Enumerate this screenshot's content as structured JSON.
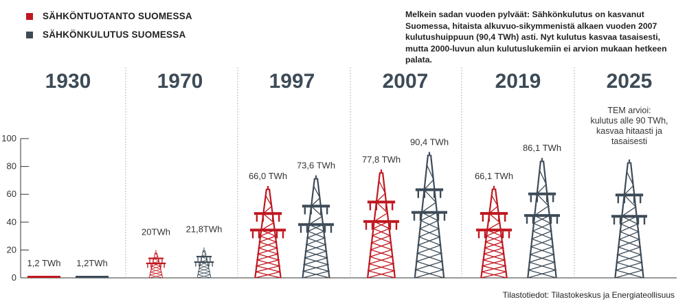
{
  "legend": [
    {
      "label": "SÄHKÖNTUOTANTO SUOMESSA",
      "color": "#c0171f"
    },
    {
      "label": "SÄHKÖNKULUTUS SUOMESSA",
      "color": "#3d4b57"
    }
  ],
  "description": "Melkein sadan vuoden pylväät: Sähkönkulutus on kasvanut Suomessa, hitaista alkuvuo-sikymmenistä alkaen  vuoden 2007 kulutushuippuun (90,4 TWh) asti. Nyt kulutus kasvaa tasaisesti, mutta 2000-luvun alun kulutuslukemiin ei arvion mukaan hetkeen palata.",
  "source": "Tilastotiedot: Tilastokeskus ja Energiateollisuus",
  "chart_data": {
    "type": "bar",
    "categories": [
      "1930",
      "1970",
      "1997",
      "2007",
      "2019",
      "2025"
    ],
    "series": [
      {
        "name": "SÄHKÖNTUOTANTO SUOMESSA",
        "color": "#c0171f",
        "values": [
          1.2,
          20,
          66.0,
          77.8,
          66.1,
          null
        ],
        "labels": [
          "1,2 TWh",
          "20TWh",
          "66,0 TWh",
          "77,8 TWh",
          "66,1 TWh",
          ""
        ]
      },
      {
        "name": "SÄHKÖNKULUTUS SUOMESSA",
        "color": "#3d4b57",
        "values": [
          1.2,
          21.8,
          73.6,
          90.4,
          86.1,
          85
        ],
        "labels": [
          "1,2TWh",
          "21,8TWh",
          "73,6 TWh",
          "90,4 TWh",
          "86,1 TWh",
          ""
        ]
      }
    ],
    "annotations": [
      {
        "category": "2025",
        "lines": [
          "TEM arvioi:",
          "kulutus alle 90 TWh,",
          "kasvaa hitaasti ja",
          "tasaisesti"
        ]
      }
    ],
    "yticks": [
      "0",
      "20",
      "40",
      "60",
      "80",
      "100"
    ],
    "ylim": [
      0,
      100
    ],
    "xlabel": "",
    "ylabel": "",
    "grid": false,
    "legend_position": "top-left"
  }
}
